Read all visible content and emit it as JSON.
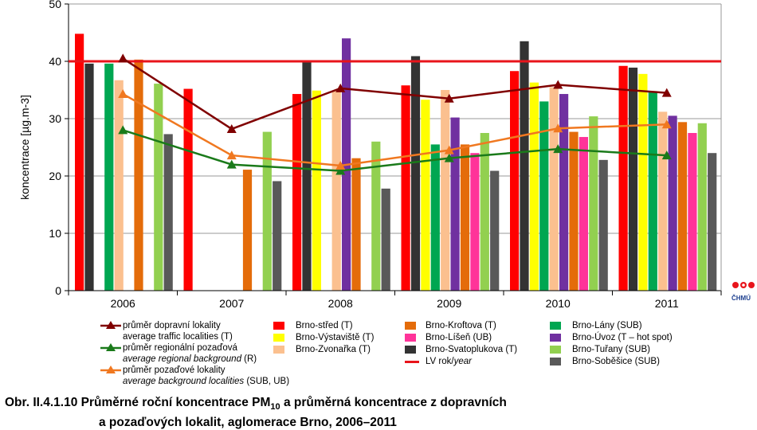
{
  "chart_data": {
    "type": "bar",
    "categories": [
      "2006",
      "2007",
      "2008",
      "2009",
      "2010",
      "2011"
    ],
    "ylabel": "koncentrace [µg.m-3]",
    "ylim": [
      0,
      50
    ],
    "yticks": [
      0,
      10,
      20,
      30,
      40,
      50
    ],
    "grid": true,
    "limit_value": 40,
    "limit_color": "#e8141b",
    "series": [
      {
        "name": "Brno-střed (T)",
        "color": "#ff0000",
        "values": [
          44.8,
          35.2,
          34.3,
          35.8,
          38.3,
          39.2
        ]
      },
      {
        "name": "Brno-Svatoplukova (T)",
        "color": "#333333",
        "values": [
          39.6,
          null,
          40.0,
          40.9,
          43.5,
          38.9
        ]
      },
      {
        "name": "Brno-Výstaviště (T)",
        "color": "#ffff00",
        "values": [
          null,
          null,
          34.9,
          33.3,
          36.3,
          37.8
        ]
      },
      {
        "name": "Brno-Lány (SUB)",
        "color": "#00a651",
        "values": [
          39.6,
          null,
          null,
          25.5,
          33.0,
          34.8
        ]
      },
      {
        "name": "Brno-Zvonařka (T)",
        "color": "#fbc08f",
        "values": [
          36.7,
          null,
          34.9,
          35.0,
          35.5,
          31.2
        ]
      },
      {
        "name": "Brno-Úvoz (T – hot spot)",
        "color": "#7030a0",
        "values": [
          null,
          null,
          44.0,
          30.2,
          34.3,
          30.5
        ]
      },
      {
        "name": "Brno-Kroftova (T)",
        "color": "#e46c0a",
        "values": [
          40.3,
          21.1,
          23.1,
          25.5,
          27.7,
          29.4
        ]
      },
      {
        "name": "Brno-Líšeň (UB)",
        "color": "#ff3399",
        "values": [
          null,
          null,
          null,
          24.0,
          26.8,
          27.5
        ]
      },
      {
        "name": "Brno-Tuřany (SUB)",
        "color": "#92d050",
        "values": [
          36.1,
          27.7,
          26.0,
          27.5,
          30.4,
          29.2
        ]
      },
      {
        "name": "Brno-Soběšice (SUB)",
        "color": "#595959",
        "values": [
          27.3,
          19.1,
          17.8,
          20.9,
          22.8,
          24.0
        ]
      }
    ],
    "lines": [
      {
        "name": "průměr dopravní lokality average traffic localities (T)",
        "color": "#800000",
        "values": [
          40.5,
          28.2,
          35.3,
          33.5,
          35.9,
          34.5
        ]
      },
      {
        "name": "průměr regionální pozaďová average regional background (R)",
        "color": "#1a7a1a",
        "values": [
          28.0,
          22.0,
          20.9,
          23.1,
          24.7,
          23.6
        ]
      },
      {
        "name": "průměr pozaďové lokality average background localities (SUB, UB)",
        "color": "#f07820",
        "values": [
          34.3,
          23.6,
          21.8,
          24.5,
          28.3,
          29.0
        ]
      }
    ]
  },
  "legend": {
    "lines": [
      {
        "l1": "průměr dopravní lokality",
        "l2": "average traffic localities (T)",
        "color": "#800000"
      },
      {
        "l1": "průměr regionální pozaďová",
        "l2a": "average regional background",
        "l2b": " (R)",
        "color": "#1a7a1a"
      },
      {
        "l1": "průměr pozaďové lokality",
        "l2a": "average background localities",
        "l2b": " (SUB, UB)",
        "color": "#f07820"
      }
    ],
    "col2": [
      {
        "label": "Brno-střed (T)",
        "color": "#ff0000"
      },
      {
        "label": "Brno-Výstaviště  (T)",
        "color": "#ffff00"
      },
      {
        "label": "Brno-Zvonařka  (T)",
        "color": "#fbc08f"
      }
    ],
    "col3": [
      {
        "label": "Brno-Kroftova (T)",
        "color": "#e46c0a"
      },
      {
        "label": "Brno-Líšeň (UB)",
        "color": "#ff3399"
      },
      {
        "label": "Brno-Svatoplukova (T)",
        "color": "#333333"
      }
    ],
    "lv": {
      "label1": "LV rok/",
      "label2": "year",
      "color": "#e8141b"
    },
    "col4": [
      {
        "label": "Brno-Lány (SUB)",
        "color": "#00a651"
      },
      {
        "label": "Brno-Úvoz (T – hot spot)",
        "color": "#7030a0"
      },
      {
        "label": "Brno-Tuřany (SUB)",
        "color": "#92d050"
      },
      {
        "label": "Brno-Soběšice (SUB)",
        "color": "#595959"
      }
    ]
  },
  "caption": {
    "prefix": "Obr. II.4.1.10  Průměrné roční koncentrace PM",
    "sub": "10",
    "rest": " a průměrná koncentrace z dopravních",
    "line2": "a pozaďových lokalit, aglomerace Brno, 2006–2011"
  },
  "logo": {
    "text": "ČHMÚ",
    "color": "#1d3f8f",
    "accent": "#e8141b"
  }
}
